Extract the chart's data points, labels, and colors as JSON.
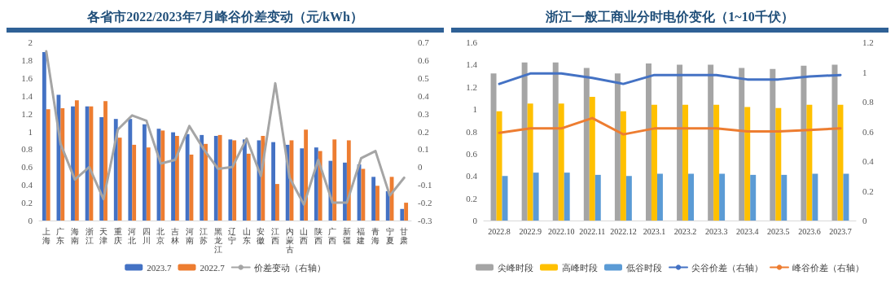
{
  "chart_data": [
    {
      "type": "bar",
      "title": "各省市2022/2023年7月峰谷价差变动（元/kWh）",
      "categories": [
        "上海",
        "广东",
        "海南",
        "浙江",
        "天津",
        "重庆",
        "河北",
        "四川",
        "北京",
        "吉林",
        "河南",
        "江苏",
        "黑龙江",
        "辽宁",
        "山东",
        "安徽",
        "江西",
        "内蒙古",
        "山西",
        "陕西",
        "广西",
        "新疆",
        "福建",
        "青海",
        "宁夏",
        "甘肃"
      ],
      "series": [
        {
          "name": "2023.7",
          "color": "#4472c4",
          "values": [
            1.89,
            1.41,
            1.28,
            1.28,
            1.16,
            1.14,
            1.14,
            1.08,
            1.03,
            0.99,
            0.97,
            0.96,
            0.95,
            0.91,
            0.91,
            0.9,
            0.88,
            0.85,
            0.81,
            0.82,
            0.67,
            0.65,
            0.63,
            0.49,
            0.33,
            0.13
          ]
        },
        {
          "name": "2022.7",
          "color": "#ed7d31",
          "values": [
            1.25,
            1.26,
            1.35,
            1.28,
            1.34,
            0.93,
            0.85,
            0.82,
            1.01,
            0.95,
            0.74,
            0.86,
            0.96,
            0.9,
            0.75,
            0.95,
            0.41,
            0.9,
            1.02,
            0.78,
            0.91,
            0.9,
            0.58,
            0.39,
            0.49,
            0.2
          ]
        },
        {
          "name": "价差变动（右轴）",
          "type": "line",
          "axis": "y2",
          "color": "#a5a5a5",
          "values": [
            0.65,
            0.13,
            -0.07,
            0.0,
            -0.18,
            0.21,
            0.29,
            0.26,
            0.02,
            0.04,
            0.23,
            0.1,
            -0.01,
            0.0,
            0.16,
            -0.05,
            0.47,
            -0.06,
            -0.21,
            0.04,
            -0.2,
            -0.2,
            0.05,
            0.09,
            -0.16,
            -0.06
          ]
        }
      ],
      "ylim": [
        0,
        2
      ],
      "yticks": [
        0,
        0.2,
        0.4,
        0.6,
        0.8,
        1,
        1.2,
        1.4,
        1.6,
        1.8,
        2
      ],
      "y2lim": [
        -0.3,
        0.7
      ],
      "y2ticks": [
        -0.3,
        -0.2,
        -0.1,
        0,
        0.1,
        0.2,
        0.3,
        0.4,
        0.5,
        0.6,
        0.7
      ],
      "legend": "bottom",
      "grid": false,
      "marker": "none"
    },
    {
      "type": "bar",
      "title": "浙江一般工商业分时电价变化（1~10千伏）",
      "categories": [
        "2022.8",
        "2022.9",
        "2022.10",
        "2022.11",
        "2022.12",
        "2023.1",
        "2023.2",
        "2023.3",
        "2023.4",
        "2023.5",
        "2023.6",
        "2023.7"
      ],
      "series": [
        {
          "name": "尖峰时段",
          "color": "#a5a5a5",
          "values": [
            1.32,
            1.42,
            1.42,
            1.37,
            1.32,
            1.41,
            1.4,
            1.4,
            1.37,
            1.36,
            1.39,
            1.4
          ]
        },
        {
          "name": "高峰时段",
          "color": "#ffc000",
          "values": [
            0.98,
            1.05,
            1.05,
            1.11,
            0.98,
            1.04,
            1.04,
            1.04,
            1.02,
            1.01,
            1.04,
            1.04
          ]
        },
        {
          "name": "低谷时段",
          "color": "#5b9bd5",
          "values": [
            0.4,
            0.43,
            0.43,
            0.41,
            0.4,
            0.42,
            0.42,
            0.42,
            0.41,
            0.41,
            0.42,
            0.42
          ]
        },
        {
          "name": "尖谷价差（右轴）",
          "type": "line",
          "axis": "y2",
          "color": "#4472c4",
          "values": [
            0.92,
            0.99,
            0.99,
            0.96,
            0.92,
            0.98,
            0.98,
            0.98,
            0.95,
            0.95,
            0.97,
            0.98
          ]
        },
        {
          "name": "峰谷价差（右轴）",
          "type": "line",
          "axis": "y2",
          "color": "#ed7d31",
          "values": [
            0.59,
            0.62,
            0.62,
            0.69,
            0.58,
            0.62,
            0.62,
            0.62,
            0.6,
            0.6,
            0.61,
            0.62
          ]
        }
      ],
      "ylim": [
        0,
        1.6
      ],
      "yticks": [
        0,
        0.2,
        0.4,
        0.6,
        0.8,
        1,
        1.2,
        1.4,
        1.6
      ],
      "y2lim": [
        0,
        1.2
      ],
      "y2ticks": [
        0,
        0.2,
        0.4,
        0.6,
        0.8,
        1,
        1.2
      ],
      "legend": "bottom",
      "grid": false,
      "marker": "none"
    }
  ]
}
